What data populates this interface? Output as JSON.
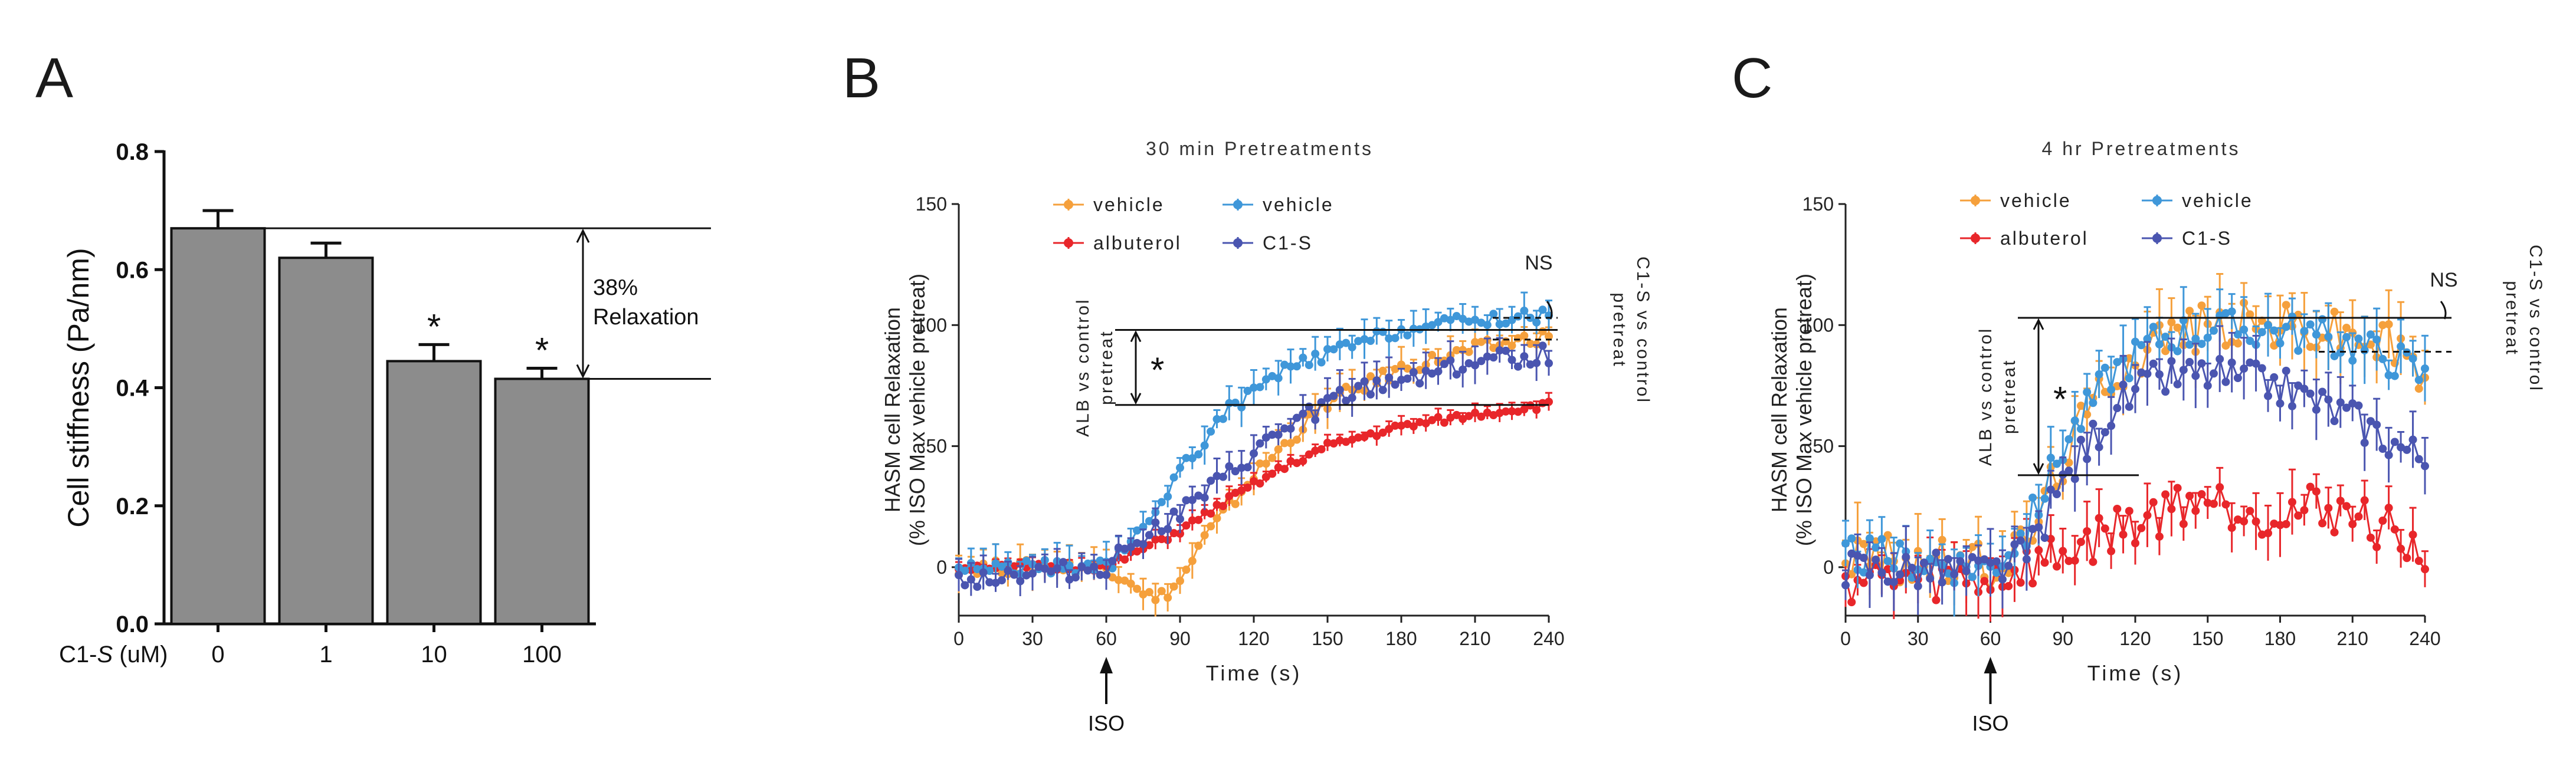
{
  "chart_data": [
    {
      "type": "bar",
      "panel_label": "A",
      "title": "",
      "ylabel": "Cell stiffness (Pa/nm)",
      "xlabel": "C1-S (uM)",
      "categories": [
        "0",
        "1",
        "10",
        "100"
      ],
      "values": [
        0.67,
        0.62,
        0.445,
        0.415
      ],
      "errors": [
        0.03,
        0.025,
        0.028,
        0.018
      ],
      "significance": [
        "",
        "",
        "*",
        "*"
      ],
      "ylim": [
        0.0,
        0.8
      ],
      "yticks": [
        "0.0",
        "0.2",
        "0.4",
        "0.6",
        "0.8"
      ],
      "bracket_annotation": [
        "38%",
        "Relaxation"
      ],
      "bar_color": "#8c8c8c"
    },
    {
      "type": "line",
      "panel_label": "B",
      "title": "30 min Pretreatments",
      "xlabel": "Time (s)",
      "ylabel": [
        "HASM cell Relaxation",
        "(% ISO Max vehicle pretreat)"
      ],
      "xlim": [
        0,
        240
      ],
      "ylim": [
        -20,
        150
      ],
      "xticks": [
        "0",
        "30",
        "60",
        "90",
        "120",
        "150",
        "180",
        "210",
        "240"
      ],
      "yticks": [
        "0",
        "50",
        "100",
        "150"
      ],
      "stimulus": "ISO",
      "stimulus_time": 60,
      "legend": {
        "left_1": "vehicle",
        "left_2": "albuterol",
        "right_1": "vehicle",
        "right_2": "C1-S"
      },
      "comparison_left": {
        "label": [
          "ALB vs control",
          "pretreat"
        ],
        "mark": "*",
        "range": [
          67,
          98
        ]
      },
      "comparison_right": {
        "label": [
          "C1-S vs control",
          "pretreat"
        ],
        "mark": "NS",
        "range": [
          94,
          103
        ]
      },
      "series": [
        {
          "name": "vehicle",
          "color": "#f5a03c",
          "key_points": [
            [
              0,
              0
            ],
            [
              60,
              0
            ],
            [
              70,
              -5
            ],
            [
              80,
              -14
            ],
            [
              90,
              -6
            ],
            [
              100,
              12
            ],
            [
              120,
              38
            ],
            [
              150,
              68
            ],
            [
              180,
              82
            ],
            [
              210,
              90
            ],
            [
              240,
              96
            ]
          ],
          "err": 6,
          "jitter": 3
        },
        {
          "name": "albuterol",
          "color": "#e8262a",
          "key_points": [
            [
              0,
              0
            ],
            [
              60,
              0
            ],
            [
              70,
              5
            ],
            [
              90,
              15
            ],
            [
              110,
              28
            ],
            [
              130,
              40
            ],
            [
              150,
              50
            ],
            [
              180,
              58
            ],
            [
              210,
              63
            ],
            [
              240,
              67
            ]
          ],
          "err": 3,
          "jitter": 1.5
        },
        {
          "name": "vehicle",
          "color": "#3f97d9",
          "key_points": [
            [
              0,
              0
            ],
            [
              60,
              0
            ],
            [
              75,
              15
            ],
            [
              90,
              40
            ],
            [
              110,
              65
            ],
            [
              130,
              80
            ],
            [
              150,
              88
            ],
            [
              180,
              98
            ],
            [
              210,
              102
            ],
            [
              240,
              104
            ]
          ],
          "err": 6,
          "jitter": 3
        },
        {
          "name": "C1-S",
          "color": "#4a55b0",
          "key_points": [
            [
              0,
              -5
            ],
            [
              60,
              0
            ],
            [
              70,
              10
            ],
            [
              90,
              22
            ],
            [
              110,
              38
            ],
            [
              130,
              55
            ],
            [
              150,
              68
            ],
            [
              180,
              78
            ],
            [
              210,
              85
            ],
            [
              240,
              88
            ]
          ],
          "err": 6,
          "jitter": 4
        }
      ]
    },
    {
      "type": "line",
      "panel_label": "C",
      "title": "4 hr Pretreatments",
      "xlabel": "Time (s)",
      "ylabel": [
        "HASM cell Relaxation",
        "(% ISO Max vehicle pretreat)"
      ],
      "xlim": [
        0,
        240
      ],
      "ylim": [
        -20,
        150
      ],
      "xticks": [
        "0",
        "30",
        "60",
        "90",
        "120",
        "150",
        "180",
        "210",
        "240"
      ],
      "yticks": [
        "0",
        "50",
        "100",
        "150"
      ],
      "stimulus": "ISO",
      "stimulus_time": 60,
      "legend": {
        "left_1": "vehicle",
        "left_2": "albuterol",
        "right_1": "vehicle",
        "right_2": "C1-S"
      },
      "comparison_left": {
        "label": [
          "ALB vs control",
          "pretreat"
        ],
        "mark": "*",
        "range": [
          38,
          103
        ]
      },
      "comparison_right": {
        "label": [
          "C1-S vs control",
          "pretreat"
        ],
        "mark": "NS",
        "range": [
          89,
          103
        ]
      },
      "series": [
        {
          "name": "vehicle",
          "color": "#f5a03c",
          "key_points": [
            [
              0,
              5
            ],
            [
              60,
              0
            ],
            [
              75,
              10
            ],
            [
              90,
              45
            ],
            [
              110,
              80
            ],
            [
              130,
              95
            ],
            [
              150,
              100
            ],
            [
              180,
              100
            ],
            [
              210,
              96
            ],
            [
              230,
              90
            ],
            [
              240,
              75
            ]
          ],
          "err": 12,
          "jitter": 10
        },
        {
          "name": "albuterol",
          "color": "#e8262a",
          "key_points": [
            [
              0,
              -5
            ],
            [
              60,
              -5
            ],
            [
              75,
              0
            ],
            [
              90,
              5
            ],
            [
              110,
              15
            ],
            [
              130,
              22
            ],
            [
              145,
              30
            ],
            [
              160,
              25
            ],
            [
              180,
              22
            ],
            [
              200,
              25
            ],
            [
              220,
              18
            ],
            [
              240,
              5
            ]
          ],
          "err": 10,
          "jitter": 10
        },
        {
          "name": "vehicle",
          "color": "#3f97d9",
          "key_points": [
            [
              0,
              5
            ],
            [
              60,
              0
            ],
            [
              75,
              15
            ],
            [
              90,
              50
            ],
            [
              110,
              80
            ],
            [
              130,
              95
            ],
            [
              150,
              98
            ],
            [
              180,
              98
            ],
            [
              210,
              92
            ],
            [
              230,
              85
            ],
            [
              240,
              78
            ]
          ],
          "err": 10,
          "jitter": 8
        },
        {
          "name": "C1-S",
          "color": "#4a55b0",
          "key_points": [
            [
              0,
              0
            ],
            [
              60,
              -2
            ],
            [
              75,
              5
            ],
            [
              90,
              35
            ],
            [
              110,
              65
            ],
            [
              130,
              78
            ],
            [
              150,
              80
            ],
            [
              180,
              75
            ],
            [
              210,
              62
            ],
            [
              230,
              50
            ],
            [
              240,
              45
            ]
          ],
          "err": 10,
          "jitter": 8
        }
      ]
    }
  ]
}
